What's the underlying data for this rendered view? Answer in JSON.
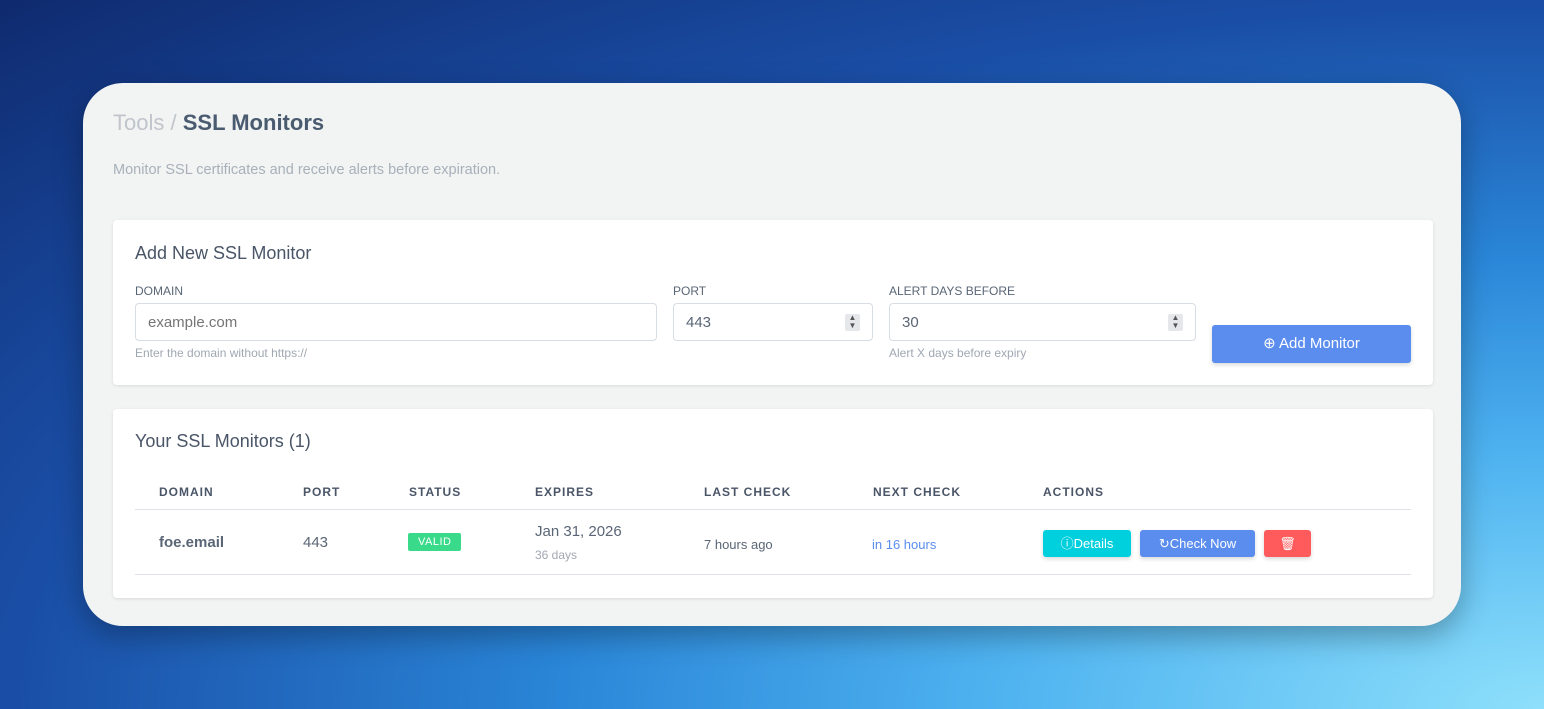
{
  "breadcrumb": {
    "parent": "Tools",
    "separator": "/",
    "current": "SSL Monitors"
  },
  "subtitle": "Monitor SSL certificates and receive alerts before expiration.",
  "add_form": {
    "title": "Add New SSL Monitor",
    "domain": {
      "label": "DOMAIN",
      "placeholder": "example.com",
      "value": "",
      "help": "Enter the domain without https://"
    },
    "port": {
      "label": "PORT",
      "value": "443"
    },
    "alert": {
      "label": "ALERT DAYS BEFORE",
      "value": "30",
      "help": "Alert X days before expiry"
    },
    "submit": "Add Monitor"
  },
  "monitors": {
    "title": "Your SSL Monitors (1)",
    "columns": [
      "DOMAIN",
      "PORT",
      "STATUS",
      "EXPIRES",
      "LAST CHECK",
      "NEXT CHECK",
      "ACTIONS"
    ],
    "rows": [
      {
        "domain": "foe.email",
        "port": "443",
        "status": "VALID",
        "expires": "Jan 31, 2026",
        "expires_in": "36 days",
        "last_check": "7 hours ago",
        "next_check": "in 16 hours",
        "details": "Details",
        "check_now": "Check Now"
      }
    ]
  },
  "colors": {
    "primary": "#5b8def",
    "info": "#00cfdd",
    "danger": "#ff5b5c",
    "success": "#39da8a"
  }
}
